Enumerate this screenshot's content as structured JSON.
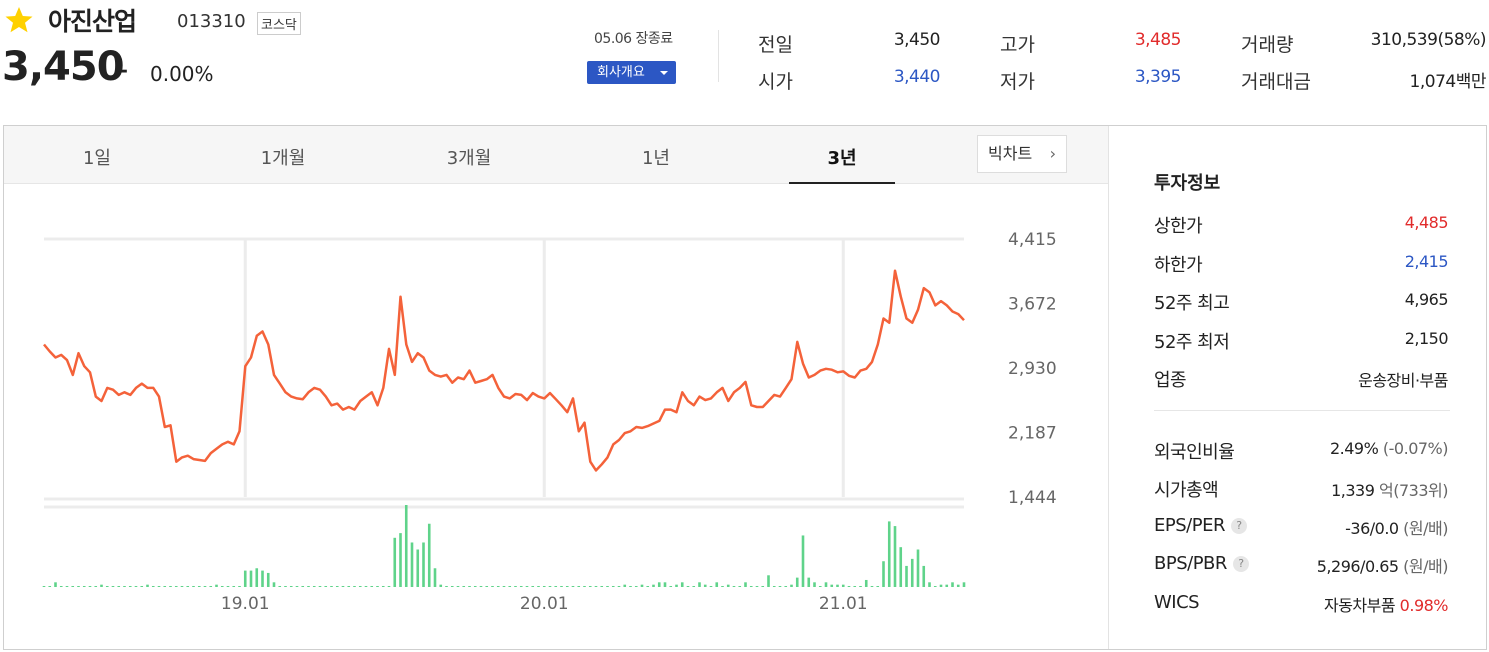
{
  "stock": {
    "name": "아진산업",
    "code": "013310",
    "market": "코스닥",
    "price": "3,450",
    "change_symbol": "–",
    "change_rate": "0.00%",
    "status": "05.06 장종료",
    "company_button": "회사개요"
  },
  "summary": {
    "prev_label": "전일",
    "prev": "3,450",
    "open_label": "시가",
    "open": "3,440",
    "high_label": "고가",
    "high": "3,485",
    "low_label": "저가",
    "low": "3,395",
    "volume_label": "거래량",
    "volume": "310,539(58%)",
    "amount_label": "거래대금",
    "amount": "1,074백만"
  },
  "tabs": [
    "1일",
    "1개월",
    "3개월",
    "1년",
    "3년"
  ],
  "active_tab": "3년",
  "bigchart_label": "빅차트",
  "invest": {
    "title": "투자정보",
    "upper_label": "상한가",
    "upper": "4,485",
    "lower_label": "하한가",
    "lower": "2,415",
    "w52_high_label": "52주 최고",
    "w52_high": "4,965",
    "w52_low_label": "52주 최저",
    "w52_low": "2,150",
    "industry_label": "업종",
    "industry": "운송장비·부품",
    "foreign_label": "외국인비율",
    "foreign": "2.49%",
    "foreign_change": "(-0.07%)",
    "mcap_label": "시가총액",
    "mcap": "1,339",
    "mcap_unit": "억",
    "mcap_rank": "(733위)",
    "eps_label": "EPS/PER",
    "eps": "-36/0.0",
    "eps_unit": "(원/배)",
    "bps_label": "BPS/PBR",
    "bps": "5,296/0.65",
    "bps_unit": "(원/배)",
    "wics_label": "WICS",
    "wics": "자동차부품",
    "wics_rate": "0.98%"
  },
  "colors": {
    "up": "#e12b2b",
    "down": "#2c57c4",
    "line": "#f4623a",
    "volume": "#5fd38a"
  },
  "chart_data": {
    "type": "line",
    "y_ticks": [
      "4,415",
      "3,672",
      "2,930",
      "2,187",
      "1,444"
    ],
    "ylim": [
      1444,
      4415
    ],
    "x_ticks": [
      "19.01",
      "20.01",
      "21.01"
    ],
    "x_tick_index": [
      35,
      87,
      139
    ],
    "price": [
      3200,
      3120,
      3050,
      3080,
      3020,
      2850,
      3100,
      2950,
      2880,
      2600,
      2550,
      2700,
      2680,
      2620,
      2650,
      2620,
      2700,
      2750,
      2700,
      2700,
      2600,
      2250,
      2270,
      1850,
      1900,
      1920,
      1880,
      1870,
      1860,
      1950,
      2000,
      2050,
      2080,
      2050,
      2200,
      2950,
      3050,
      3300,
      3350,
      3200,
      2850,
      2750,
      2650,
      2600,
      2580,
      2570,
      2650,
      2700,
      2680,
      2600,
      2500,
      2520,
      2450,
      2480,
      2450,
      2550,
      2600,
      2650,
      2500,
      2700,
      3150,
      2850,
      3750,
      3200,
      3000,
      3100,
      3050,
      2900,
      2850,
      2830,
      2850,
      2760,
      2820,
      2800,
      2900,
      2760,
      2780,
      2800,
      2850,
      2700,
      2600,
      2580,
      2630,
      2620,
      2560,
      2640,
      2600,
      2580,
      2640,
      2570,
      2500,
      2420,
      2580,
      2200,
      2300,
      1850,
      1750,
      1820,
      1900,
      2050,
      2100,
      2180,
      2200,
      2250,
      2240,
      2260,
      2290,
      2320,
      2450,
      2450,
      2420,
      2650,
      2550,
      2500,
      2600,
      2560,
      2580,
      2650,
      2700,
      2550,
      2650,
      2700,
      2770,
      2500,
      2480,
      2480,
      2550,
      2620,
      2600,
      2700,
      2800,
      3230,
      2980,
      2820,
      2850,
      2900,
      2920,
      2910,
      2880,
      2890,
      2840,
      2820,
      2900,
      2920,
      3000,
      3200,
      3500,
      3450,
      4050,
      3750,
      3500,
      3450,
      3600,
      3850,
      3800,
      3650,
      3700,
      3650,
      3580,
      3550,
      3480
    ],
    "volume": [
      0,
      0,
      2,
      0,
      0,
      0,
      0,
      0,
      0,
      0,
      1,
      0,
      0,
      0,
      0,
      0,
      0,
      0,
      1,
      0,
      0,
      0,
      0,
      0,
      0,
      0,
      0,
      0,
      0,
      0,
      1,
      0,
      0,
      0,
      0,
      7,
      7,
      8,
      7,
      6,
      2,
      0,
      0,
      0,
      0,
      0,
      0,
      0,
      0,
      0,
      0,
      0,
      0,
      0,
      0,
      0,
      0,
      0,
      0,
      0,
      0,
      21,
      23,
      35,
      19,
      16,
      19,
      27,
      8,
      1,
      0,
      0,
      0,
      0,
      0,
      0,
      0,
      0,
      0,
      0,
      0,
      0,
      0,
      0,
      0,
      0,
      0,
      0,
      0,
      0,
      0,
      0,
      0,
      0,
      0,
      0,
      0,
      0,
      0,
      0,
      0,
      1,
      0,
      0,
      1,
      0,
      1,
      2,
      2,
      0,
      1,
      2,
      0,
      0,
      2,
      1,
      0,
      2,
      0,
      1,
      0,
      0,
      2,
      0,
      0,
      0,
      5,
      0,
      0,
      0,
      1,
      4,
      22,
      4,
      2,
      0,
      2,
      1,
      1,
      1,
      0,
      0,
      0,
      3,
      0,
      0,
      11,
      28,
      26,
      17,
      9,
      12,
      16,
      9,
      2,
      0,
      1,
      1,
      2,
      1,
      2
    ]
  }
}
